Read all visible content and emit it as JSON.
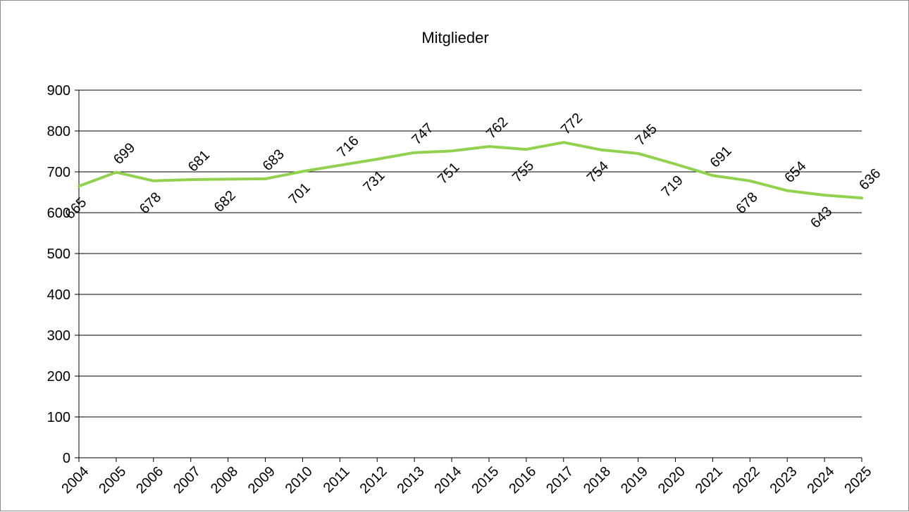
{
  "chart_data": {
    "type": "line",
    "title": "Mitglieder",
    "xlabel": "",
    "ylabel": "",
    "categories": [
      "2004",
      "2005",
      "2006",
      "2007",
      "2008",
      "2009",
      "2010",
      "2011",
      "2012",
      "2013",
      "2014",
      "2015",
      "2016",
      "2017",
      "2018",
      "2019",
      "2020",
      "2021",
      "2022",
      "2023",
      "2024",
      "2025"
    ],
    "series": [
      {
        "values": [
          665,
          699,
          678,
          681,
          682,
          683,
          701,
          716,
          731,
          747,
          751,
          762,
          755,
          772,
          754,
          745,
          719,
          691,
          678,
          654,
          643,
          636
        ],
        "color": "#92d050"
      }
    ],
    "ylim": [
      0,
      900
    ],
    "yticks": [
      0,
      100,
      200,
      300,
      400,
      500,
      600,
      700,
      800,
      900
    ],
    "grid": true,
    "legend": "none",
    "data_labels": [
      "665",
      "699",
      "678",
      "681",
      "682",
      "683",
      "701",
      "716",
      "731",
      "747",
      "751",
      "762",
      "755",
      "772",
      "754",
      "745",
      "719",
      "691",
      "678",
      "654",
      "643",
      "636"
    ]
  }
}
